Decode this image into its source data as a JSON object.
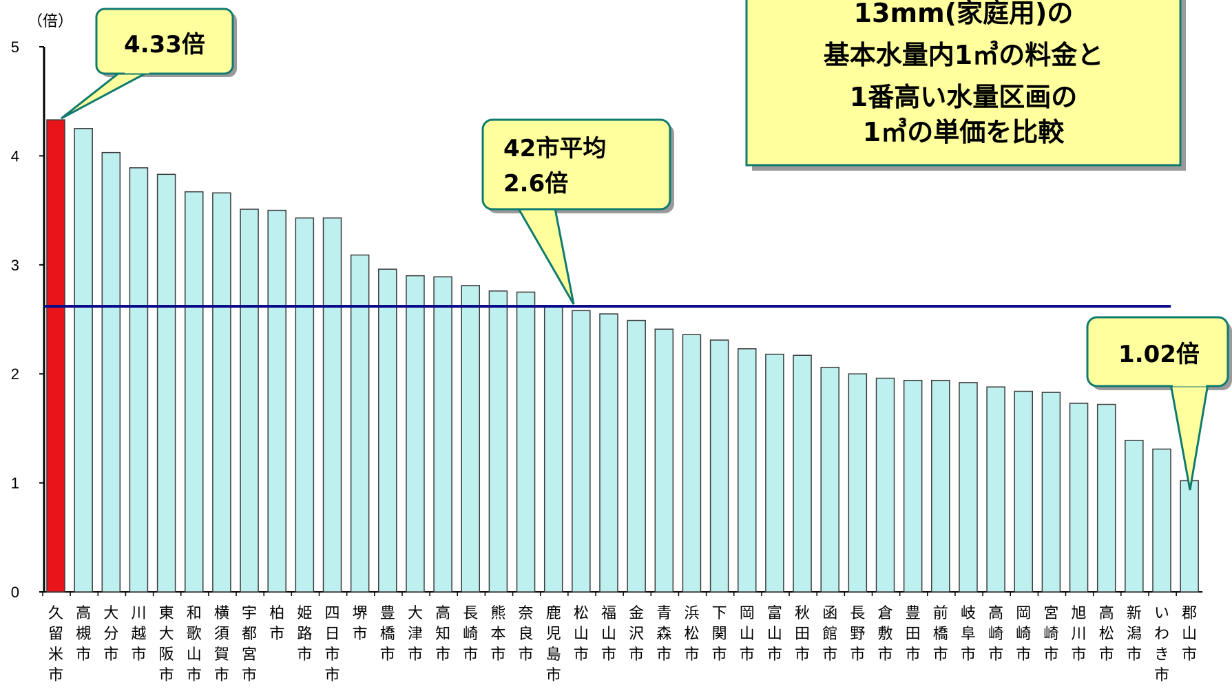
{
  "chart_data": {
    "type": "bar",
    "unit_label": "（倍）",
    "ylim": [
      0,
      5
    ],
    "yticks": [
      "0",
      "1",
      "2",
      "3",
      "4",
      "5"
    ],
    "categories": [
      "久留米市",
      "高槻市",
      "大分市",
      "川越市",
      "東大阪市",
      "和歌山市",
      "横須賀市",
      "宇都宮市",
      "柏市",
      "姫路市",
      "四日市市",
      "堺市",
      "豊橋市",
      "大津市",
      "高知市",
      "長崎市",
      "熊本市",
      "奈良市",
      "鹿児島市",
      "松山市",
      "福山市",
      "金沢市",
      "青森市",
      "浜松市",
      "下関市",
      "岡山市",
      "富山市",
      "秋田市",
      "函館市",
      "長野市",
      "倉敷市",
      "豊田市",
      "前橋市",
      "岐阜市",
      "高崎市",
      "岡崎市",
      "宮崎市",
      "旭川市",
      "高松市",
      "新潟市",
      "いわき市",
      "郡山市"
    ],
    "values": [
      4.33,
      4.25,
      4.03,
      3.89,
      3.83,
      3.67,
      3.66,
      3.51,
      3.5,
      3.43,
      3.43,
      3.09,
      2.96,
      2.9,
      2.89,
      2.81,
      2.76,
      2.75,
      2.62,
      2.58,
      2.55,
      2.49,
      2.41,
      2.36,
      2.31,
      2.23,
      2.18,
      2.17,
      2.06,
      2.0,
      1.96,
      1.94,
      1.94,
      1.92,
      1.88,
      1.84,
      1.83,
      1.73,
      1.72,
      1.39,
      1.31,
      1.02
    ],
    "average": 2.62,
    "colors": {
      "highlight": "#e8141a",
      "bar": "#bff0f0",
      "bar_edge": "#3a3a3a",
      "average_line": "#0a0a8a"
    },
    "annotations": {
      "max": "4.33倍",
      "average": [
        "42市平均",
        "2.6倍"
      ],
      "min": "1.02倍"
    },
    "note": [
      "13mm(家庭用)の",
      "基本水量内1㎥の料金と",
      "1番高い水量区画の",
      "1㎥の単価を比較"
    ],
    "callout_colors": {
      "fill": "#ffff9e",
      "stroke": "#0f7a6e",
      "shadow": "#9a9a9a"
    }
  }
}
